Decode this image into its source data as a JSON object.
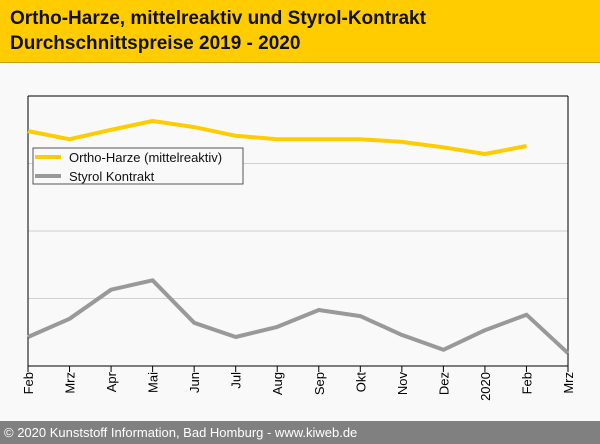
{
  "header": {
    "title_line1": "Ortho-Harze, mittelreaktiv und Styrol-Kontrakt",
    "title_line2": "Durchschnittspreise 2019 - 2020"
  },
  "footer": {
    "text": "© 2020 Kunststoff Information, Bad Homburg - www.kiweb.de"
  },
  "chart_data": {
    "type": "line",
    "title": "Ortho-Harze, mittelreaktiv und Styrol-Kontrakt Durchschnittspreise 2019 - 2020",
    "xlabel": "",
    "ylabel": "",
    "categories": [
      "Feb",
      "Mrz",
      "Apr",
      "Mai",
      "Jun",
      "Jul",
      "Aug",
      "Sep",
      "Okt",
      "Nov",
      "Dez",
      "2020",
      "Feb",
      "Mrz"
    ],
    "ylim": [
      0,
      4
    ],
    "y_units": "relative (no y-axis labels shown)",
    "grid": true,
    "legend_position": "top-left",
    "series": [
      {
        "name": "Ortho-Harze (mittelreaktiv)",
        "color": "#ffcc00",
        "values": [
          3.48,
          3.36,
          3.5,
          3.63,
          3.54,
          3.41,
          3.36,
          3.36,
          3.36,
          3.32,
          3.24,
          3.14,
          3.26,
          null
        ]
      },
      {
        "name": "Styrol Kontrakt",
        "color": "#999999",
        "values": [
          0.43,
          0.7,
          1.13,
          1.27,
          0.64,
          0.43,
          0.58,
          0.83,
          0.74,
          0.46,
          0.24,
          0.53,
          0.76,
          0.19
        ]
      }
    ]
  }
}
